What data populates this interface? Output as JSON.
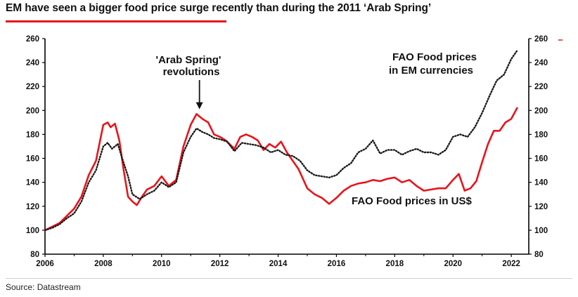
{
  "title": "EM have seen a bigger food price surge recently than during the 2011 ‘Arab Spring’",
  "source": "Source: Datastream",
  "colors": {
    "accent": "#e8141b",
    "us_series": "#e8141b",
    "em_series": "#1a1a1a",
    "axis": "#000000"
  },
  "chart_data": {
    "type": "line",
    "x_range": [
      2006,
      2022.6
    ],
    "ylim": [
      80,
      260
    ],
    "yticks": [
      80,
      100,
      120,
      140,
      160,
      180,
      200,
      220,
      240,
      260
    ],
    "xticks": [
      2006,
      2008,
      2010,
      2012,
      2014,
      2016,
      2018,
      2020,
      2022
    ],
    "right_axis": true,
    "grid": false,
    "annotations": [
      {
        "text": "'Arab Spring'",
        "line": 1
      },
      {
        "text": "revolutions",
        "line": 2
      },
      {
        "text": "FAO Food prices",
        "line": 1,
        "series": "em"
      },
      {
        "text": "in EM currencies",
        "line": 2,
        "series": "em"
      },
      {
        "text": "FAO Food prices in US$",
        "series": "us"
      }
    ],
    "arrow": {
      "from": [
        2011.3,
        247
      ],
      "to": [
        2011.3,
        201
      ]
    },
    "series": [
      {
        "id": "us",
        "style": "solid",
        "x": [
          2006.0,
          2006.25,
          2006.5,
          2006.75,
          2007.0,
          2007.25,
          2007.5,
          2007.75,
          2008.0,
          2008.15,
          2008.25,
          2008.4,
          2008.55,
          2008.7,
          2008.85,
          2009.0,
          2009.15,
          2009.3,
          2009.5,
          2009.75,
          2010.0,
          2010.25,
          2010.5,
          2010.75,
          2011.0,
          2011.2,
          2011.4,
          2011.6,
          2011.8,
          2012.0,
          2012.2,
          2012.5,
          2012.7,
          2012.9,
          2013.1,
          2013.3,
          2013.5,
          2013.7,
          2013.9,
          2014.1,
          2014.3,
          2014.5,
          2014.7,
          2015.0,
          2015.25,
          2015.5,
          2015.75,
          2016.0,
          2016.25,
          2016.5,
          2016.75,
          2017.0,
          2017.25,
          2017.5,
          2017.75,
          2018.0,
          2018.25,
          2018.5,
          2018.75,
          2019.0,
          2019.25,
          2019.5,
          2019.75,
          2020.0,
          2020.2,
          2020.4,
          2020.6,
          2020.8,
          2021.0,
          2021.2,
          2021.4,
          2021.6,
          2021.8,
          2022.0,
          2022.2
        ],
        "values": [
          100,
          103,
          106,
          112,
          118,
          128,
          146,
          158,
          188,
          190,
          186,
          189,
          175,
          150,
          128,
          124,
          121,
          127,
          134,
          137,
          145,
          137,
          142,
          170,
          188,
          197,
          193,
          190,
          180,
          178,
          175,
          168,
          178,
          180,
          178,
          175,
          167,
          172,
          169,
          174,
          165,
          158,
          151,
          135,
          130,
          127,
          122,
          127,
          133,
          137,
          139,
          140,
          142,
          141,
          143,
          144,
          140,
          142,
          137,
          133,
          134,
          135,
          135,
          142,
          147,
          133,
          135,
          141,
          157,
          172,
          183,
          183,
          190,
          193,
          202
        ]
      },
      {
        "id": "em",
        "style": "dotted",
        "x": [
          2006.0,
          2006.25,
          2006.5,
          2006.75,
          2007.0,
          2007.25,
          2007.5,
          2007.75,
          2008.0,
          2008.15,
          2008.3,
          2008.5,
          2008.65,
          2008.85,
          2009.0,
          2009.25,
          2009.5,
          2009.75,
          2010.0,
          2010.25,
          2010.5,
          2010.75,
          2011.0,
          2011.2,
          2011.4,
          2011.6,
          2011.8,
          2012.0,
          2012.25,
          2012.5,
          2012.75,
          2013.0,
          2013.25,
          2013.5,
          2013.75,
          2014.0,
          2014.25,
          2014.5,
          2014.75,
          2015.0,
          2015.25,
          2015.5,
          2015.75,
          2016.0,
          2016.25,
          2016.5,
          2016.75,
          2017.0,
          2017.25,
          2017.5,
          2017.75,
          2018.0,
          2018.25,
          2018.5,
          2018.75,
          2019.0,
          2019.25,
          2019.5,
          2019.75,
          2020.0,
          2020.25,
          2020.5,
          2020.75,
          2021.0,
          2021.25,
          2021.5,
          2021.75,
          2022.0,
          2022.2
        ],
        "values": [
          100,
          102,
          105,
          110,
          114,
          124,
          140,
          150,
          170,
          173,
          168,
          172,
          160,
          145,
          130,
          126,
          130,
          133,
          140,
          136,
          140,
          165,
          178,
          185,
          182,
          180,
          177,
          176,
          174,
          166,
          173,
          172,
          171,
          169,
          165,
          167,
          163,
          162,
          158,
          150,
          146,
          145,
          144,
          146,
          152,
          156,
          165,
          168,
          175,
          164,
          167,
          167,
          163,
          166,
          168,
          165,
          165,
          163,
          167,
          178,
          180,
          178,
          186,
          198,
          212,
          225,
          230,
          243,
          250
        ]
      }
    ]
  }
}
